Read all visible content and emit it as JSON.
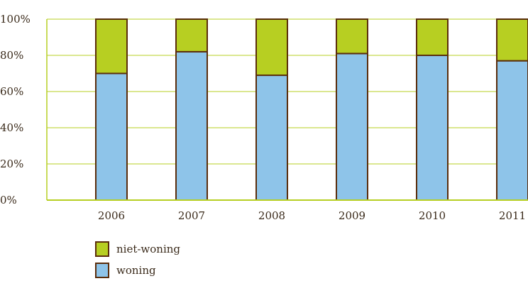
{
  "chart_data": {
    "type": "bar",
    "stacked": true,
    "categories": [
      "2006",
      "2007",
      "2008",
      "2009",
      "2010",
      "2011"
    ],
    "series": [
      {
        "name": "woning",
        "color": "#8ec4e9",
        "values": [
          70,
          82,
          69,
          81,
          80,
          77
        ]
      },
      {
        "name": "niet-woning",
        "color": "#b7cf22",
        "values": [
          30,
          18,
          31,
          19,
          20,
          23
        ]
      }
    ],
    "ylim": [
      0,
      100
    ],
    "yticks": [
      0,
      20,
      40,
      60,
      80,
      100
    ],
    "yticklabels": [
      "0%",
      "20%",
      "40%",
      "60%",
      "80%",
      "100%"
    ],
    "grid": true,
    "gridColor": "#b7cf22",
    "barOutline": "#5a2d0c",
    "legend_position": "bottom-left"
  },
  "legend": {
    "items": [
      {
        "label": "niet-woning",
        "color": "#b7cf22"
      },
      {
        "label": "woning",
        "color": "#8ec4e9"
      }
    ]
  }
}
